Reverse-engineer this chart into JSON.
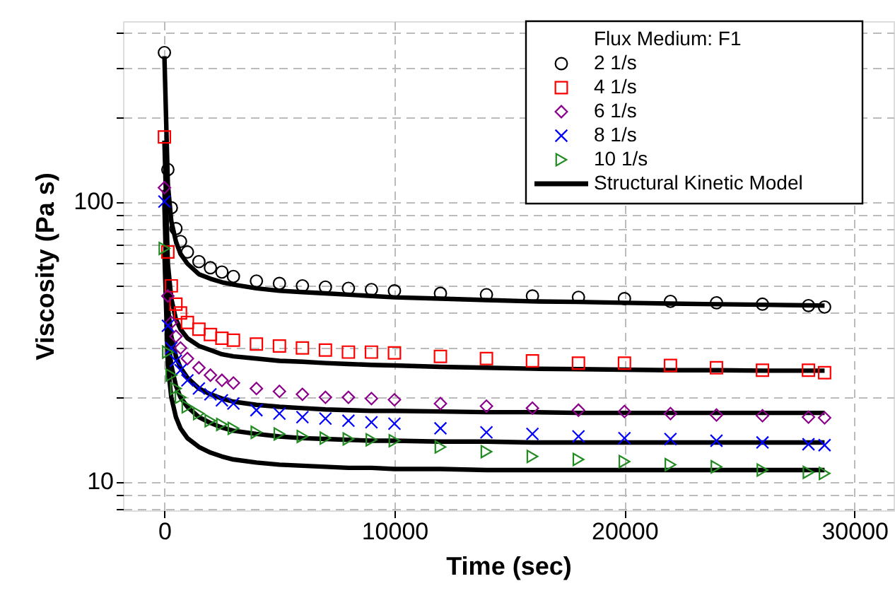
{
  "chart_data": {
    "type": "scatter",
    "xlabel": "Time (sec)",
    "ylabel": "Viscosity (Pa s)",
    "legend_title": "Flux Medium: F1",
    "legend": "top right",
    "grid": true,
    "log": "y",
    "x": [
      0,
      150,
      300,
      500,
      700,
      1000,
      1500,
      2000,
      2500,
      3000,
      4000,
      5000,
      6000,
      7000,
      8000,
      9000,
      10000,
      12000,
      14000,
      16000,
      18000,
      20000,
      22000,
      24000,
      26000,
      28000,
      28700
    ],
    "xlim": [
      -1800,
      31700
    ],
    "xticks": [
      0,
      10000,
      20000,
      30000
    ],
    "ylim": [
      7.9,
      440
    ],
    "yticks": [
      {
        "value": 8,
        "label": null
      },
      {
        "value": 9,
        "label": null
      },
      10,
      {
        "value": 20,
        "label": null
      },
      {
        "value": 30,
        "label": null
      },
      {
        "value": 40,
        "label": null
      },
      {
        "value": 50,
        "label": null
      },
      {
        "value": 60,
        "label": null
      },
      {
        "value": 70,
        "label": null
      },
      {
        "value": 80,
        "label": null
      },
      {
        "value": 90,
        "label": null
      },
      100,
      {
        "value": 200,
        "label": null
      },
      {
        "value": 300,
        "label": null
      },
      {
        "value": 400,
        "label": null
      }
    ],
    "series": [
      {
        "name": "2 1/s",
        "marker": "circle",
        "color": "#000000",
        "values": [
          340,
          130,
          95,
          80,
          72,
          66,
          61,
          58,
          56,
          54,
          52,
          51,
          50,
          49.5,
          49,
          48.5,
          48,
          47,
          46.5,
          46,
          45.5,
          45,
          44,
          43.5,
          43,
          42.5,
          42
        ]
      },
      {
        "name": "4 1/s",
        "marker": "square",
        "color": "#ff0000",
        "values": [
          170,
          66,
          50,
          43,
          40,
          37,
          35,
          33.5,
          32.5,
          32,
          31,
          30.5,
          30,
          29.5,
          29,
          29,
          28.8,
          28,
          27.5,
          27,
          26.5,
          26.5,
          26,
          25.5,
          25,
          25,
          24.5
        ]
      },
      {
        "name": "6 1/s",
        "marker": "diamond",
        "color": "#8b008b",
        "values": [
          112,
          46,
          37,
          33,
          30,
          27.5,
          25.5,
          24,
          23,
          22.5,
          21.5,
          21,
          20.5,
          20,
          20,
          19.8,
          19.6,
          19,
          18.6,
          18.3,
          18,
          17.8,
          17.5,
          17.3,
          17.2,
          17,
          16.9
        ]
      },
      {
        "name": "8 1/s",
        "marker": "cross",
        "color": "#0000ff",
        "values": [
          100,
          36,
          30,
          27,
          25,
          23,
          21.5,
          20.5,
          19.5,
          19,
          18,
          17.5,
          17,
          16.8,
          16.5,
          16.3,
          16.1,
          15.5,
          15,
          14.8,
          14.5,
          14.3,
          14.2,
          14,
          13.8,
          13.6,
          13.5
        ]
      },
      {
        "name": "10 1/s",
        "marker": "triangle",
        "color": "#228b22",
        "values": [
          68,
          29,
          24,
          21.5,
          20,
          18.5,
          17.5,
          16.5,
          16,
          15.5,
          15,
          14.8,
          14.5,
          14.3,
          14.2,
          14.1,
          14,
          13.3,
          12.8,
          12.3,
          12,
          11.8,
          11.5,
          11.3,
          11,
          10.8,
          10.7
        ]
      },
      {
        "name": "Structural Kinetic Model",
        "type": "line",
        "color": "#000000",
        "values": [
          330,
          115,
          85,
          72,
          65,
          60,
          55,
          53,
          51.5,
          50.5,
          49,
          48,
          47.5,
          47,
          46.5,
          46,
          45.5,
          45,
          44.5,
          44,
          43.8,
          43.5,
          43.2,
          43,
          42.8,
          42.6,
          42.5
        ]
      },
      {
        "type": "line",
        "color": "#000000",
        "values": [
          165,
          60,
          45,
          38,
          35,
          32.5,
          30.5,
          29.5,
          28.5,
          28,
          27.5,
          27,
          26.8,
          26.5,
          26.3,
          26.1,
          26,
          25.7,
          25.5,
          25.3,
          25.2,
          25.1,
          25,
          25,
          24.9,
          24.9,
          24.9
        ]
      },
      {
        "type": "line",
        "color": "#000000",
        "values": [
          110,
          42,
          33,
          28,
          25.5,
          23.5,
          21.5,
          20.5,
          19.8,
          19.3,
          18.8,
          18.5,
          18.3,
          18.1,
          18,
          17.9,
          17.9,
          17.8,
          17.7,
          17.7,
          17.6,
          17.6,
          17.6,
          17.6,
          17.6,
          17.6,
          17.6
        ]
      },
      {
        "type": "line",
        "color": "#000000",
        "values": [
          98,
          33,
          26,
          22,
          20,
          18.5,
          17,
          16.2,
          15.6,
          15.2,
          14.8,
          14.5,
          14.3,
          14.2,
          14.1,
          14,
          14,
          13.9,
          13.9,
          13.8,
          13.8,
          13.8,
          13.8,
          13.8,
          13.8,
          13.8,
          13.8
        ]
      },
      {
        "type": "line",
        "color": "#000000",
        "values": [
          66,
          26,
          20,
          17,
          15.5,
          14.3,
          13.3,
          12.7,
          12.3,
          12,
          11.7,
          11.5,
          11.4,
          11.3,
          11.2,
          11.2,
          11.1,
          11.1,
          11,
          11,
          11,
          11,
          11,
          11,
          11,
          11,
          11
        ]
      }
    ]
  }
}
